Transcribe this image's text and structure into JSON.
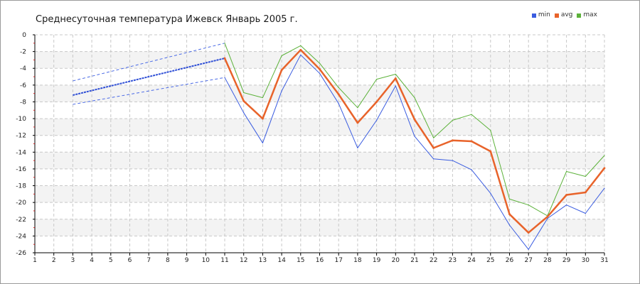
{
  "chart_data": {
    "type": "line",
    "title": "Среднесуточная температура Ижевск  Январь 2005 г.",
    "xlabel": "",
    "ylabel": "",
    "x": [
      1,
      2,
      3,
      4,
      5,
      6,
      7,
      8,
      9,
      10,
      11,
      12,
      13,
      14,
      15,
      16,
      17,
      18,
      19,
      20,
      21,
      22,
      23,
      24,
      25,
      26,
      27,
      28,
      29,
      30,
      31
    ],
    "xlim": [
      1,
      31
    ],
    "ylim": [
      -26,
      0
    ],
    "yticks": [
      0,
      -2,
      -4,
      -6,
      -8,
      -10,
      -12,
      -14,
      -16,
      -18,
      -20,
      -22,
      -24,
      -26
    ],
    "grid": true,
    "legend_position": "top-right",
    "missing_data_interpolation": {
      "x": [
        3,
        11
      ],
      "min": [
        -8.3,
        -5.1
      ],
      "avg": [
        -7.2,
        -2.8
      ],
      "max": [
        -5.5,
        -1.0
      ]
    },
    "series": [
      {
        "name": "min",
        "color": "#3a5ce0",
        "x": [
          11,
          12,
          13,
          14,
          15,
          16,
          17,
          18,
          19,
          20,
          21,
          22,
          23,
          24,
          25,
          26,
          27,
          28,
          29,
          30,
          31
        ],
        "values": [
          -5.1,
          -9.3,
          -12.9,
          -6.7,
          -2.4,
          -4.6,
          -8.2,
          -13.5,
          -10.2,
          -6.1,
          -12.1,
          -14.8,
          -15.0,
          -16.1,
          -18.9,
          -22.7,
          -25.6,
          -21.9,
          -20.3,
          -21.3,
          -18.3
        ]
      },
      {
        "name": "avg",
        "color": "#e8632a",
        "x": [
          11,
          12,
          13,
          14,
          15,
          16,
          17,
          18,
          19,
          20,
          21,
          22,
          23,
          24,
          25,
          26,
          27,
          28,
          29,
          30,
          31
        ],
        "values": [
          -2.8,
          -7.9,
          -10.0,
          -4.2,
          -1.8,
          -4.1,
          -7.1,
          -10.5,
          -8.0,
          -5.2,
          -10.1,
          -13.5,
          -12.6,
          -12.7,
          -13.9,
          -21.4,
          -23.6,
          -21.7,
          -19.1,
          -18.8,
          -15.9
        ]
      },
      {
        "name": "max",
        "color": "#5cb23a",
        "x": [
          11,
          12,
          13,
          14,
          15,
          16,
          17,
          18,
          19,
          20,
          21,
          22,
          23,
          24,
          25,
          26,
          27,
          28,
          29,
          30,
          31
        ],
        "values": [
          -1.0,
          -6.9,
          -7.5,
          -2.5,
          -1.3,
          -3.4,
          -6.3,
          -8.7,
          -5.3,
          -4.7,
          -7.5,
          -12.3,
          -10.2,
          -9.5,
          -11.4,
          -19.6,
          -20.3,
          -21.6,
          -16.3,
          -16.9,
          -14.4
        ]
      }
    ]
  }
}
